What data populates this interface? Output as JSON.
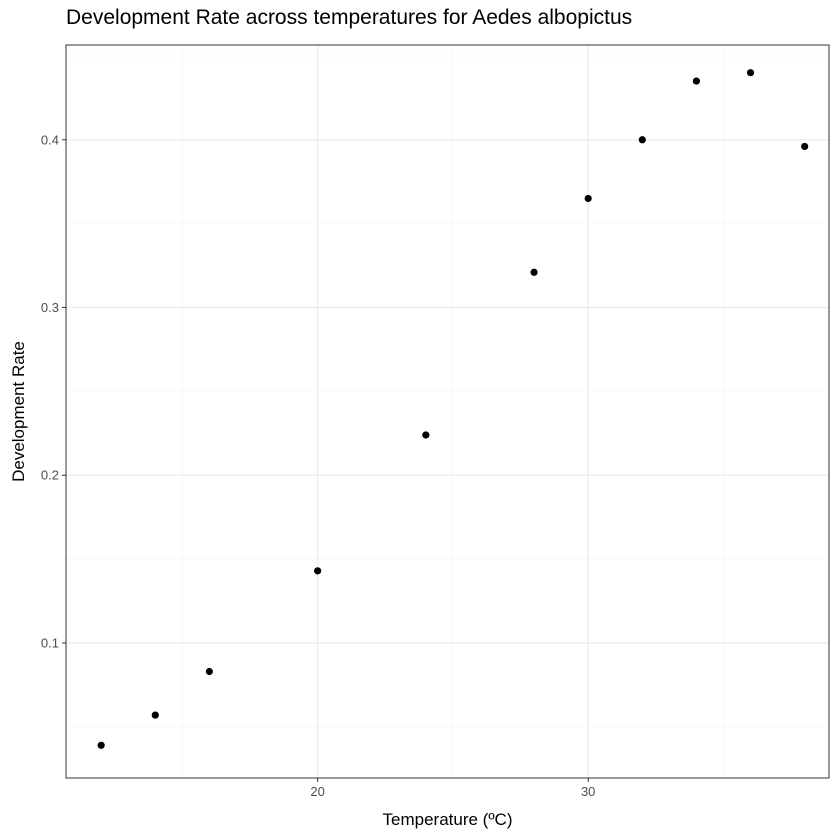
{
  "chart_data": {
    "type": "scatter",
    "title": "Development Rate across temperatures for Aedes albopictus",
    "xlabel": "Temperature (ºC)",
    "ylabel": "Development Rate",
    "xlim": [
      10.7,
      38.9
    ],
    "ylim": [
      0.0195,
      0.4565
    ],
    "x_ticks": [
      20,
      30
    ],
    "x_tick_labels": [
      "20",
      "30"
    ],
    "x_minor_ticks": [
      15,
      25,
      35
    ],
    "y_ticks": [
      0.1,
      0.2,
      0.3,
      0.4
    ],
    "y_tick_labels": [
      "0.1",
      "0.2",
      "0.3",
      "0.4"
    ],
    "y_minor_ticks": [
      0.05,
      0.15,
      0.25,
      0.35,
      0.45
    ],
    "grid": true,
    "series": [
      {
        "color": "#000000",
        "points": [
          {
            "x": 12,
            "y": 0.039
          },
          {
            "x": 14,
            "y": 0.057
          },
          {
            "x": 16,
            "y": 0.083
          },
          {
            "x": 20,
            "y": 0.143
          },
          {
            "x": 24,
            "y": 0.224
          },
          {
            "x": 28,
            "y": 0.321
          },
          {
            "x": 30,
            "y": 0.365
          },
          {
            "x": 32,
            "y": 0.4
          },
          {
            "x": 34,
            "y": 0.435
          },
          {
            "x": 36,
            "y": 0.44
          },
          {
            "x": 38,
            "y": 0.396
          }
        ]
      }
    ]
  }
}
